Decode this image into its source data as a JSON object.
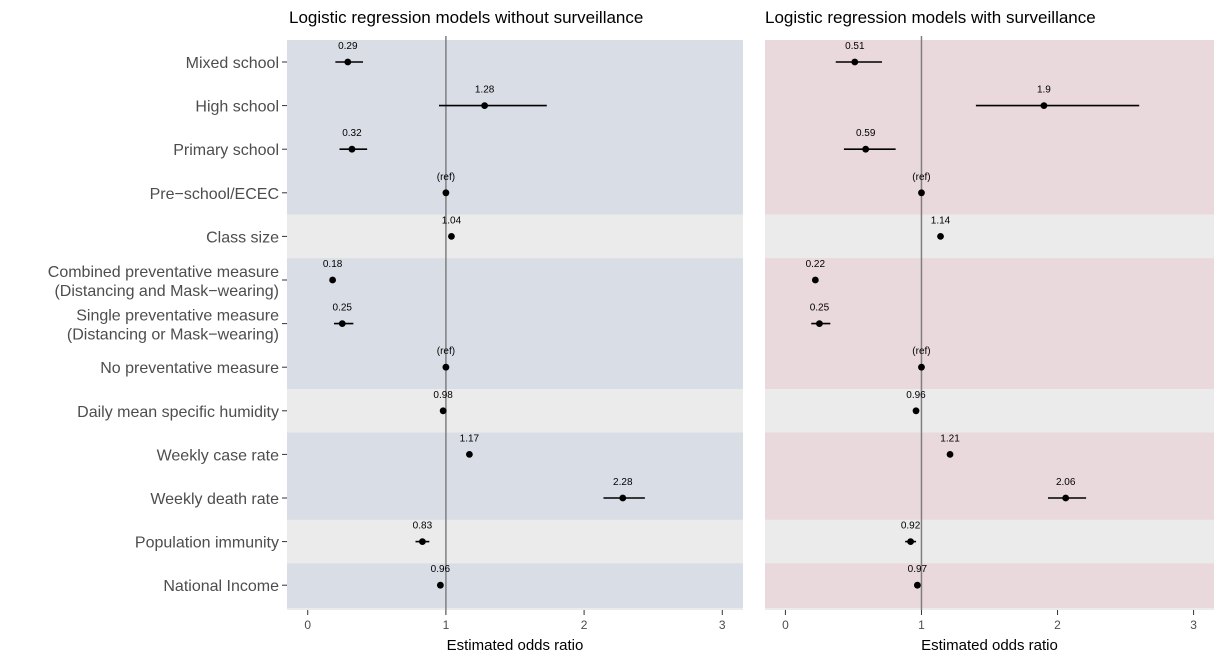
{
  "chart_data": {
    "type": "forest",
    "categories": [
      "Mixed school",
      "High school",
      "Primary school",
      "Pre−school/ECEC",
      "Class size",
      "Combined preventative measure\n(Distancing and Mask−wearing)",
      "Single preventative measure\n(Distancing or Mask−wearing)",
      "No preventative measure",
      "Daily mean specific humidity",
      "Weekly case rate",
      "Weekly death rate",
      "Population immunity",
      "National Income"
    ],
    "band_groups": [
      0,
      0,
      0,
      0,
      1,
      2,
      2,
      2,
      3,
      4,
      4,
      5,
      6
    ],
    "xlabel": "Estimated odds ratio",
    "xlim": [
      -0.15,
      3.15
    ],
    "xticks": [
      0,
      1,
      2,
      3
    ],
    "reference_line": 1,
    "colors": {
      "band_without": "#d9dde6",
      "band_with": "#e9d8dc",
      "band_neutral": "#ebebeb",
      "reference_line": "#7f7f7f"
    },
    "panels": [
      {
        "title": "Logistic regression models without surveillance",
        "band_color_key": "band_without",
        "estimates": [
          0.29,
          1.28,
          0.32,
          1,
          1.04,
          0.18,
          0.25,
          1,
          0.98,
          1.17,
          2.28,
          0.83,
          0.96
        ],
        "ci_low": [
          0.2,
          0.95,
          0.23,
          null,
          1.02,
          0.17,
          0.19,
          null,
          0.96,
          1.15,
          2.14,
          0.78,
          0.94
        ],
        "ci_high": [
          0.4,
          1.73,
          0.43,
          null,
          1.06,
          0.19,
          0.33,
          null,
          1.0,
          1.19,
          2.44,
          0.88,
          0.98
        ],
        "labels": [
          "0.29",
          "1.28",
          "0.32",
          "(ref)",
          "1.04",
          "0.18",
          "0.25",
          "(ref)",
          "0.98",
          "1.17",
          "2.28",
          "0.83",
          "0.96"
        ]
      },
      {
        "title": "Logistic regression models with surveillance",
        "band_color_key": "band_with",
        "estimates": [
          0.51,
          1.9,
          0.59,
          1,
          1.14,
          0.22,
          0.25,
          1,
          0.96,
          1.21,
          2.06,
          0.92,
          0.97
        ],
        "ci_low": [
          0.37,
          1.4,
          0.43,
          null,
          1.12,
          0.2,
          0.19,
          null,
          0.94,
          1.19,
          1.93,
          0.88,
          0.95
        ],
        "ci_high": [
          0.71,
          2.6,
          0.81,
          null,
          1.16,
          0.24,
          0.33,
          null,
          0.98,
          1.23,
          2.21,
          0.96,
          0.99
        ],
        "labels": [
          "0.51",
          "1.9",
          "0.59",
          "(ref)",
          "1.14",
          "0.22",
          "0.25",
          "(ref)",
          "0.96",
          "1.21",
          "2.06",
          "0.92",
          "0.97"
        ]
      }
    ]
  }
}
